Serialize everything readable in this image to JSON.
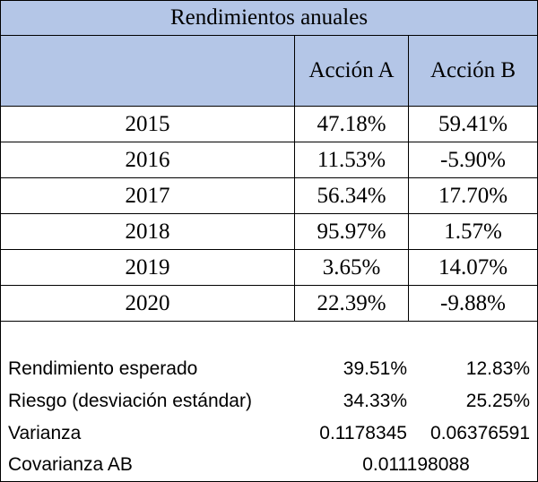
{
  "table": {
    "title": "Rendimientos anuales",
    "headers": [
      "",
      "Acción A",
      "Acción B"
    ],
    "rows": [
      {
        "year": "2015",
        "a": "47.18%",
        "b": "59.41%"
      },
      {
        "year": "2016",
        "a": "11.53%",
        "b": "-5.90%"
      },
      {
        "year": "2017",
        "a": "56.34%",
        "b": "17.70%"
      },
      {
        "year": "2018",
        "a": "95.97%",
        "b": "1.57%"
      },
      {
        "year": "2019",
        "a": "3.65%",
        "b": "14.07%"
      },
      {
        "year": "2020",
        "a": "22.39%",
        "b": "-9.88%"
      }
    ]
  },
  "stats": {
    "expected": {
      "label": "Rendimiento esperado",
      "a": "39.51%",
      "b": "12.83%"
    },
    "risk": {
      "label": "Riesgo (desviación estándar)",
      "a": "34.33%",
      "b": "25.25%"
    },
    "variance": {
      "label": "Varianza",
      "a": "0.1178345",
      "b": "0.06376591"
    },
    "covariance": {
      "label": "Covarianza AB",
      "value": "0.011198088"
    }
  },
  "colors": {
    "header_fill": "#b4c6e7",
    "border": "#000000"
  }
}
